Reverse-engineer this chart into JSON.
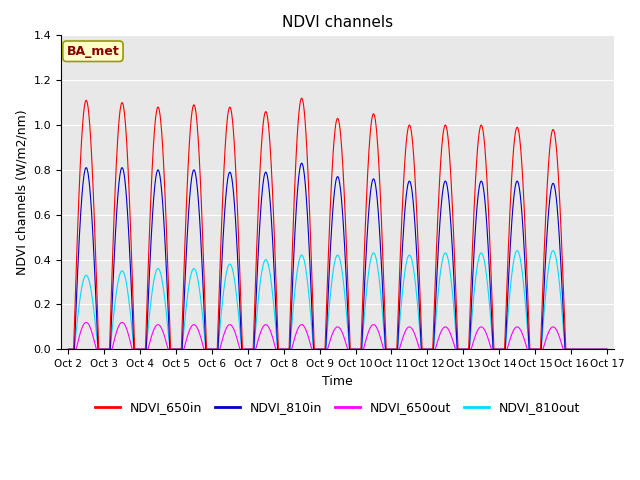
{
  "title": "NDVI channels",
  "xlabel": "Time",
  "ylabel": "NDVI channels (W/m2/nm)",
  "ylim": [
    0,
    1.4
  ],
  "xtick_labels": [
    "Oct 2",
    "Oct 3",
    "Oct 4",
    "Oct 5",
    "Oct 6",
    "Oct 7",
    "Oct 8",
    "Oct 9",
    "Oct 10",
    "Oct 11",
    "Oct 12",
    "Oct 13",
    "Oct 14",
    "Oct 15",
    "Oct 16",
    "Oct 17"
  ],
  "bg_color": "#e8e8e8",
  "annotation_text": "BA_met",
  "annotation_facecolor": "#ffffcc",
  "annotation_edgecolor": "#999900",
  "annotation_textcolor": "#880000",
  "colors": {
    "NDVI_650in": "#ff0000",
    "NDVI_810in": "#0000cc",
    "NDVI_650out": "#ff00ff",
    "NDVI_810out": "#00ddff"
  },
  "peak_650in": [
    1.11,
    1.1,
    1.08,
    1.09,
    1.08,
    1.06,
    1.12,
    1.03,
    1.05,
    1.0,
    1.0,
    1.0,
    0.99,
    0.98
  ],
  "peak_810in": [
    0.81,
    0.81,
    0.8,
    0.8,
    0.79,
    0.79,
    0.83,
    0.77,
    0.76,
    0.75,
    0.75,
    0.75,
    0.75,
    0.74
  ],
  "peak_650out": [
    0.12,
    0.12,
    0.11,
    0.11,
    0.11,
    0.11,
    0.11,
    0.1,
    0.11,
    0.1,
    0.1,
    0.1,
    0.1,
    0.1
  ],
  "peak_810out": [
    0.33,
    0.35,
    0.36,
    0.36,
    0.38,
    0.4,
    0.42,
    0.42,
    0.43,
    0.42,
    0.43,
    0.43,
    0.44,
    0.44
  ],
  "legend_entries": [
    "NDVI_650in",
    "NDVI_810in",
    "NDVI_650out",
    "NDVI_810out"
  ]
}
